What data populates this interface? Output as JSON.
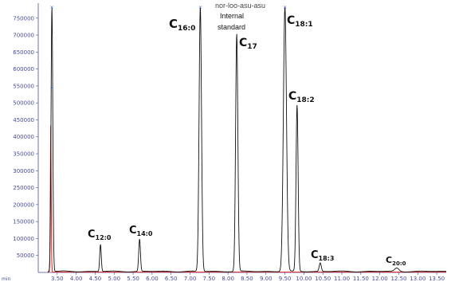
{
  "chart_data": {
    "type": "line",
    "title": "",
    "xlabel": "",
    "ylabel": "",
    "xlim": [
      3.0,
      13.75
    ],
    "ylim": [
      0,
      780000
    ],
    "y_ticks": [
      50000,
      100000,
      150000,
      200000,
      250000,
      300000,
      350000,
      400000,
      450000,
      500000,
      550000,
      600000,
      650000,
      700000,
      750000
    ],
    "y_tick_labels": [
      "50000",
      "100000",
      "150000",
      "200000",
      "250000",
      "300000",
      "350000",
      "400000",
      "450000",
      "500000",
      "550000",
      "600000",
      "650000",
      "700000",
      "750000"
    ],
    "x_ticks": [
      3.5,
      4.0,
      4.5,
      5.0,
      5.5,
      6.0,
      6.5,
      7.0,
      7.5,
      8.0,
      8.5,
      9.0,
      9.5,
      10.0,
      10.5,
      11.0,
      11.5,
      12.0,
      12.5,
      13.0,
      13.5
    ],
    "x_tick_labels": [
      "3.50",
      "4.00",
      "4.50",
      "5.00",
      "5.50",
      "6.00",
      "6.50",
      "7.00",
      "7.50",
      "8.00",
      "8.50",
      "9.00",
      "9.50",
      "10.00",
      "10.50",
      "11.00",
      "11.50",
      "12.00",
      "12.50",
      "13.00",
      "13.50"
    ],
    "corner_label": "min",
    "peaks": [
      {
        "rt": 3.36,
        "height": 780000,
        "width": 0.05,
        "label_main": "",
        "label_sub": ""
      },
      {
        "rt": 4.64,
        "height": 80000,
        "width": 0.045,
        "label_main": "C",
        "label_sub": "12:0"
      },
      {
        "rt": 5.67,
        "height": 95000,
        "width": 0.05,
        "label_main": "C",
        "label_sub": "14:0"
      },
      {
        "rt": 7.27,
        "height": 780000,
        "width": 0.07,
        "label_main": "C",
        "label_sub": "16:0"
      },
      {
        "rt": 8.23,
        "height": 700000,
        "width": 0.065,
        "label_main": "C",
        "label_sub": "17"
      },
      {
        "rt": 9.5,
        "height": 780000,
        "width": 0.09,
        "label_main": "C",
        "label_sub": "18:1"
      },
      {
        "rt": 9.82,
        "height": 490000,
        "width": 0.06,
        "label_main": "C",
        "label_sub": "18:2"
      },
      {
        "rt": 10.43,
        "height": 25000,
        "width": 0.06,
        "label_main": "C",
        "label_sub": "18:3"
      },
      {
        "rt": 12.45,
        "height": 10000,
        "width": 0.12,
        "label_main": "C",
        "label_sub": "20:0"
      }
    ],
    "red_peak": {
      "rt": 3.33,
      "height": 435000,
      "width": 0.025
    },
    "annotation": {
      "line1": "Internal",
      "line2": "standard",
      "clipped_top": "nor-loo-asu-asu"
    }
  },
  "colors": {
    "trace": "#111111",
    "baseline": "#e03030",
    "axis": "#4b4b9a",
    "marker": "#3a5bd0"
  }
}
